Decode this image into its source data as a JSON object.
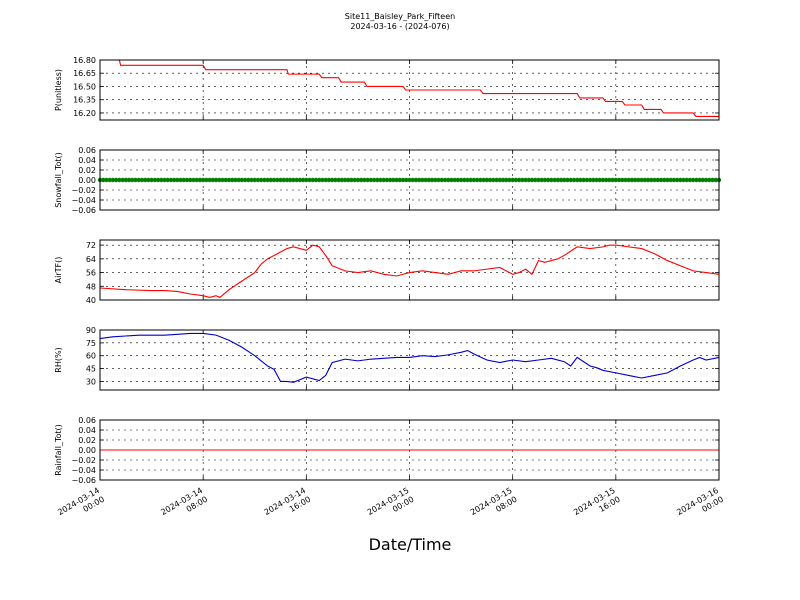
{
  "title": "Site11_Baisley_Park_Fifteen",
  "subtitle": "2024-03-16 - (2024-076)",
  "xlabel": "Date/Time",
  "x_ticks": [
    {
      "l1": "2024-03-14",
      "l2": "00:00"
    },
    {
      "l1": "2024-03-14",
      "l2": "08:00"
    },
    {
      "l1": "2024-03-14",
      "l2": "16:00"
    },
    {
      "l1": "2024-03-15",
      "l2": "00:00"
    },
    {
      "l1": "2024-03-15",
      "l2": "08:00"
    },
    {
      "l1": "2024-03-15",
      "l2": "16:00"
    },
    {
      "l1": "2024-03-16",
      "l2": "00:00"
    }
  ],
  "chart_data": [
    {
      "type": "line",
      "ylabel": "P(unitless)",
      "color": "#ff0000",
      "ylim": [
        16.12,
        16.8
      ],
      "yticks": [
        "16.80",
        "16.65",
        "16.50",
        "16.35",
        "16.20"
      ],
      "ytick_values": [
        16.8,
        16.65,
        16.5,
        16.35,
        16.2
      ],
      "xlim_hours": [
        0,
        48
      ],
      "grid": true,
      "x": [
        0,
        1.5,
        1.6,
        8,
        8.2,
        14.5,
        14.6,
        17,
        17.2,
        18.5,
        18.7,
        20.5,
        20.7,
        23.5,
        23.7,
        29.5,
        29.7,
        37,
        37.2,
        39,
        39.2,
        40.5,
        40.7,
        42,
        42.2,
        43.5,
        43.7,
        46,
        46.2,
        48
      ],
      "y": [
        16.8,
        16.8,
        16.74,
        16.74,
        16.69,
        16.69,
        16.64,
        16.64,
        16.6,
        16.6,
        16.55,
        16.55,
        16.5,
        16.5,
        16.46,
        16.46,
        16.42,
        16.42,
        16.37,
        16.37,
        16.33,
        16.33,
        16.29,
        16.29,
        16.24,
        16.24,
        16.2,
        16.2,
        16.16,
        16.16
      ]
    },
    {
      "type": "scatter",
      "ylabel": "Snowfall_Tot()",
      "color": "#008000",
      "ylim": [
        -0.06,
        0.06
      ],
      "yticks": [
        "0.06",
        "0.04",
        "0.02",
        "0.00",
        "−0.02",
        "−0.04",
        "−0.06"
      ],
      "ytick_values": [
        0.06,
        0.04,
        0.02,
        0,
        -0.02,
        -0.04,
        -0.06
      ],
      "xlim_hours": [
        0,
        48
      ],
      "grid": true,
      "constant_value": 0.0,
      "x_start": 0,
      "x_end": 48,
      "x_step": 0.25
    },
    {
      "type": "line",
      "ylabel": "AirTF()",
      "color": "#ff0000",
      "ylim": [
        40,
        75
      ],
      "yticks": [
        "72",
        "64",
        "56",
        "48",
        "40"
      ],
      "ytick_values": [
        72,
        64,
        56,
        48,
        40
      ],
      "xlim_hours": [
        0,
        48
      ],
      "grid": true,
      "x": [
        0,
        2,
        4,
        5,
        6,
        7,
        8,
        8.5,
        9,
        9.3,
        10,
        11,
        12,
        12.5,
        13,
        14,
        14.5,
        15,
        15.5,
        16,
        16.5,
        17,
        17.5,
        18,
        19,
        20,
        21,
        22,
        23,
        24,
        25,
        26,
        27,
        28,
        29,
        30,
        31,
        32,
        32.5,
        33,
        33.5,
        34,
        34.5,
        35,
        35.5,
        36,
        37,
        38,
        39,
        39.5,
        40,
        41,
        42,
        43,
        44,
        45,
        46,
        47,
        48
      ],
      "y": [
        47,
        46,
        45.5,
        45.5,
        45,
        43.5,
        42.5,
        41.5,
        42.5,
        41.5,
        46,
        51,
        56,
        61,
        64,
        68,
        70,
        71,
        70,
        69,
        72,
        71,
        66,
        60,
        57,
        56,
        57,
        55,
        54,
        56,
        57,
        56,
        55,
        57,
        57,
        58,
        59,
        55,
        56,
        58,
        55,
        63,
        62,
        63,
        64,
        66,
        71,
        70,
        71,
        72,
        72,
        71,
        70,
        67,
        63,
        60,
        57,
        56,
        55
      ]
    },
    {
      "type": "line",
      "ylabel": "RH(%)",
      "color": "#0000cc",
      "ylim": [
        20,
        90
      ],
      "yticks": [
        "90",
        "75",
        "60",
        "45",
        "30"
      ],
      "ytick_values": [
        90,
        75,
        60,
        45,
        30
      ],
      "xlim_hours": [
        0,
        48
      ],
      "grid": true,
      "x": [
        0,
        1,
        2,
        3,
        4,
        5,
        6,
        7,
        8,
        9,
        10,
        11,
        12,
        13,
        13.5,
        14,
        14.5,
        15,
        16,
        17,
        17.5,
        18,
        19,
        20,
        21,
        22,
        23,
        24,
        25,
        26,
        27,
        28,
        28.5,
        29,
        30,
        31,
        32,
        33,
        34,
        35,
        36,
        36.5,
        37,
        38,
        38.5,
        39,
        40,
        41,
        42,
        43,
        44,
        45,
        46,
        46.5,
        47,
        48
      ],
      "y": [
        80,
        82,
        83,
        84,
        84,
        84,
        85,
        86,
        86,
        84,
        78,
        70,
        60,
        48,
        44,
        30,
        30,
        29,
        35,
        31,
        37,
        52,
        56,
        54,
        56,
        57,
        58,
        58,
        60,
        59,
        61,
        64,
        66,
        62,
        55,
        52,
        55,
        53,
        55,
        57,
        53,
        48,
        58,
        48,
        46,
        43,
        40,
        37,
        34,
        37,
        40,
        48,
        55,
        58,
        55,
        58
      ]
    },
    {
      "type": "line",
      "ylabel": "Rainfall_Tot()",
      "color": "#ff0000",
      "ylim": [
        -0.06,
        0.06
      ],
      "yticks": [
        "0.06",
        "0.04",
        "0.02",
        "0.00",
        "−0.02",
        "−0.04",
        "−0.06"
      ],
      "ytick_values": [
        0.06,
        0.04,
        0.02,
        0,
        -0.02,
        -0.04,
        -0.06
      ],
      "xlim_hours": [
        0,
        48
      ],
      "grid": true,
      "x": [
        0,
        48
      ],
      "y": [
        0,
        0
      ]
    }
  ]
}
